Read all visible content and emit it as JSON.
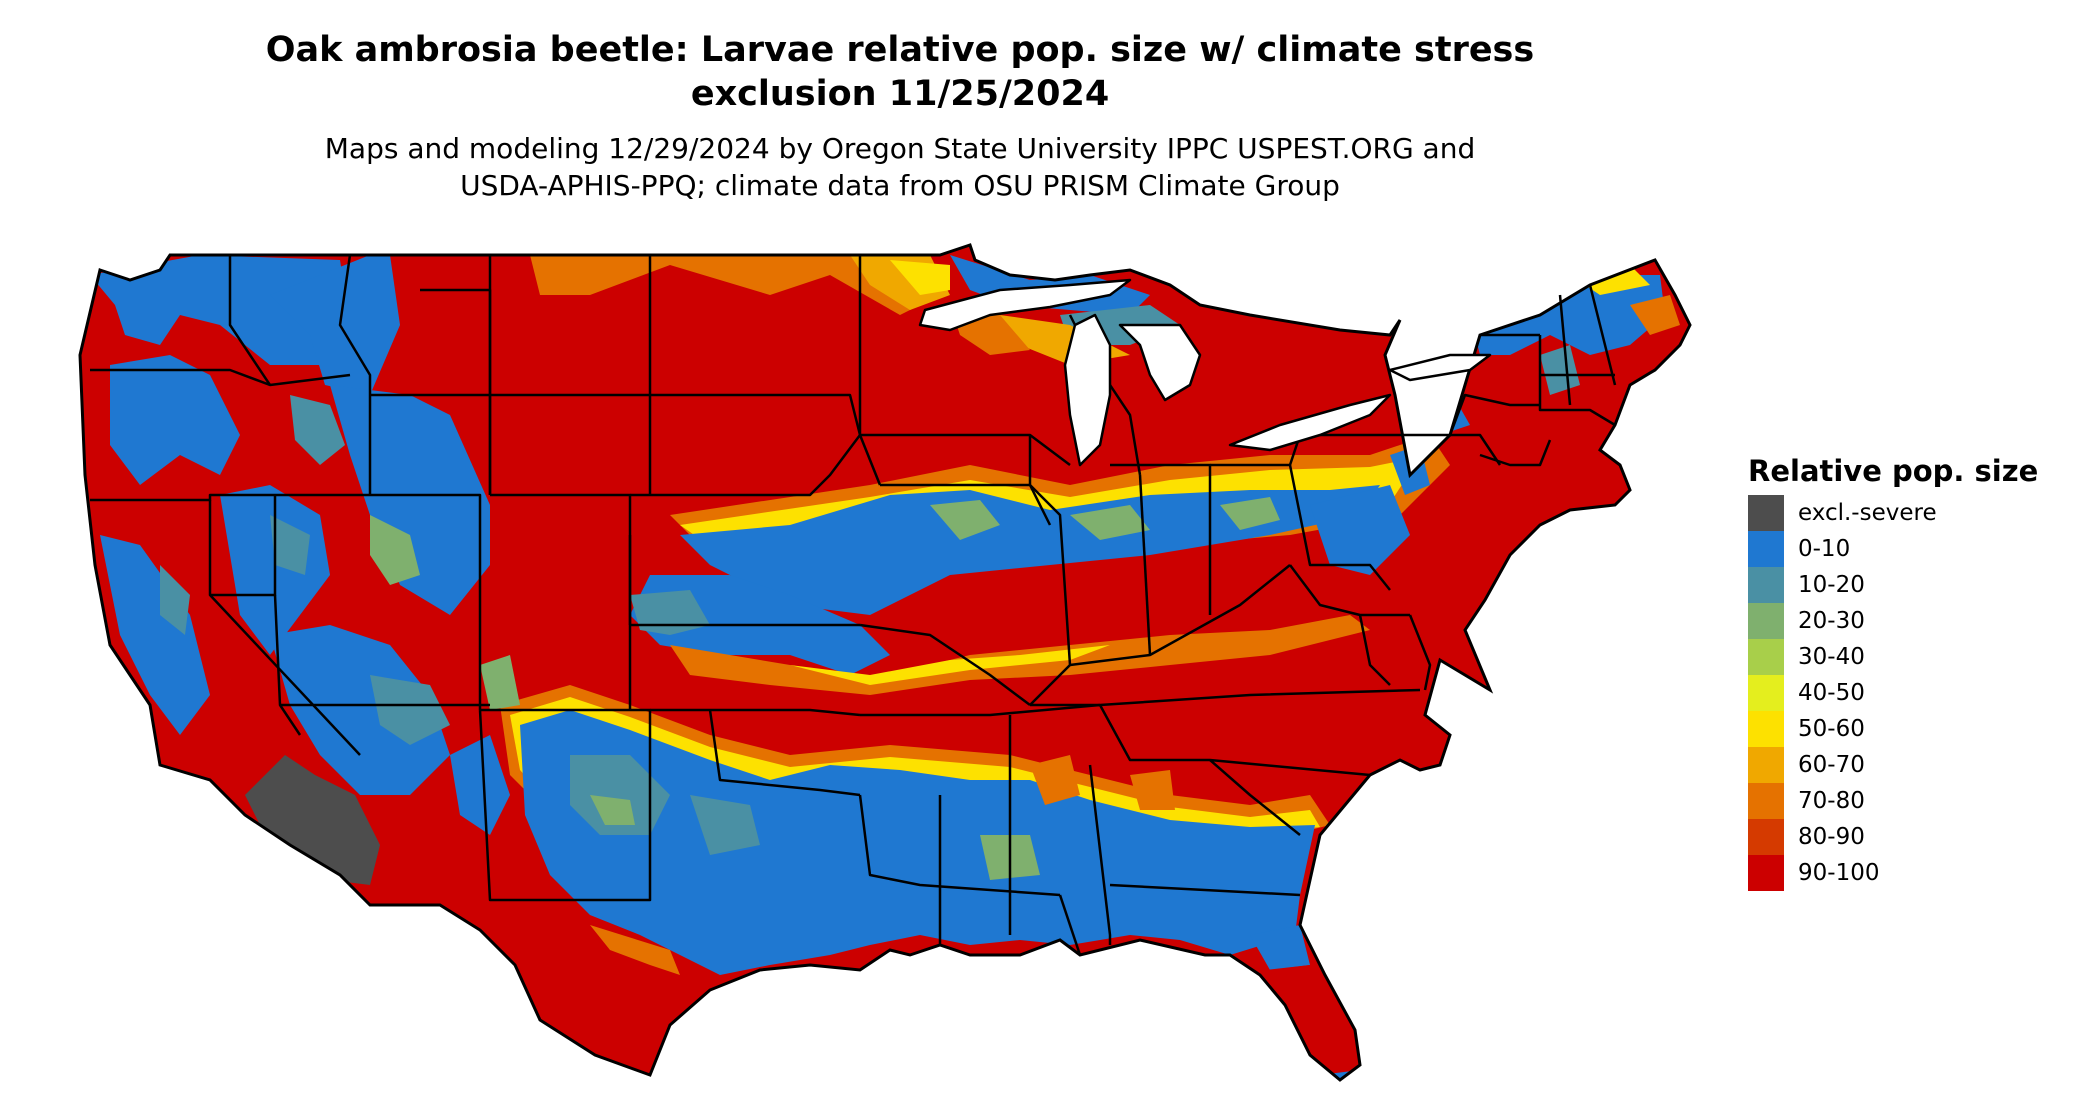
{
  "title": {
    "line1": "Oak ambrosia beetle: Larvae relative pop. size w/ climate stress",
    "line2": "exclusion 11/25/2024"
  },
  "subtitle": {
    "line1": "Maps and modeling 12/29/2024 by Oregon State University IPPC USPEST.ORG and",
    "line2": "USDA-APHIS-PPQ; climate data from OSU PRISM Climate Group"
  },
  "legend": {
    "title": "Relative pop. size",
    "items": [
      {
        "label": "excl.-severe",
        "color": "#4d4d4d"
      },
      {
        "label": "0-10",
        "color": "#1f78d1"
      },
      {
        "label": "10-20",
        "color": "#4a90a4"
      },
      {
        "label": "20-30",
        "color": "#7fb06e"
      },
      {
        "label": "30-40",
        "color": "#a8cf4a"
      },
      {
        "label": "40-50",
        "color": "#e4ee1e"
      },
      {
        "label": "50-60",
        "color": "#fde100"
      },
      {
        "label": "60-70",
        "color": "#f0a800"
      },
      {
        "label": "70-80",
        "color": "#e57200"
      },
      {
        "label": "80-90",
        "color": "#d53a00"
      },
      {
        "label": "90-100",
        "color": "#cc0000"
      }
    ]
  },
  "map": {
    "border_color": "#000000",
    "water_color": "#ffffff"
  }
}
